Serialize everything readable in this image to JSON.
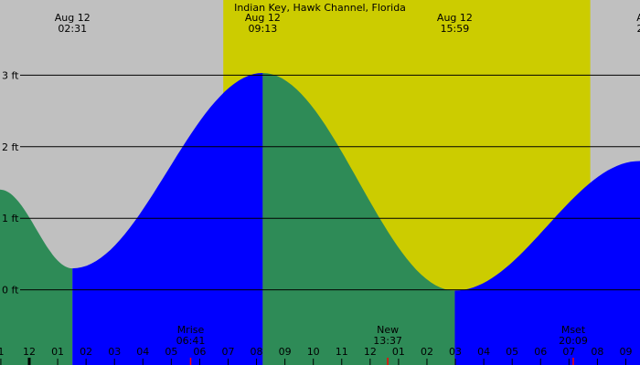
{
  "chart_data": {
    "type": "area",
    "title": "Indian Key, Hawk Channel, Florida",
    "xlabel": "",
    "ylabel": "",
    "x_unit": "hour of day",
    "xlim": [
      -0.03,
      22.5
    ],
    "ylim": [
      -1.05,
      4.05
    ],
    "y_ticks": [
      {
        "value": 0,
        "label": "0 ft"
      },
      {
        "value": 1,
        "label": "1 ft"
      },
      {
        "value": 2,
        "label": "2 ft"
      },
      {
        "value": 3,
        "label": "3 ft"
      }
    ],
    "grid": true,
    "x_ticks": [
      "1",
      "12",
      "01",
      "02",
      "03",
      "04",
      "05",
      "06",
      "07",
      "08",
      "09",
      "10",
      "11",
      "12",
      "01",
      "02",
      "03",
      "04",
      "05",
      "06",
      "07",
      "08",
      "09"
    ],
    "daylight": [
      {
        "start": 7.83,
        "end": 20.75
      }
    ],
    "tide_extremes": [
      {
        "date": "Aug 12",
        "time": "02:31",
        "hour": 2.52,
        "height_ft": 0.3
      },
      {
        "date": "Aug 12",
        "time": "09:13",
        "hour": 9.22,
        "height_ft": 3.03
      },
      {
        "date": "Aug 12",
        "time": "15:59",
        "hour": 15.98,
        "height_ft": -0.01
      },
      {
        "date": "A",
        "time": "2",
        "hour": 22.5,
        "height_ft": 1.8
      }
    ],
    "curve_start_height_ft": 1.4,
    "curve_start_hour": -0.03,
    "events": [
      {
        "label": "Mrise",
        "time": "06:41",
        "hour": 6.68
      },
      {
        "label": "New",
        "time": "13:37",
        "hour": 13.62
      },
      {
        "label": "Mset",
        "time": "20:09",
        "hour": 20.15
      }
    ],
    "colors": {
      "night": "#c0c0c0",
      "day": "#cccc00",
      "rising": "#0000ff",
      "falling": "#2e8b57",
      "gridline": "#000000",
      "event_tick": "#ff0000",
      "midnight_tick": "#000000"
    }
  }
}
